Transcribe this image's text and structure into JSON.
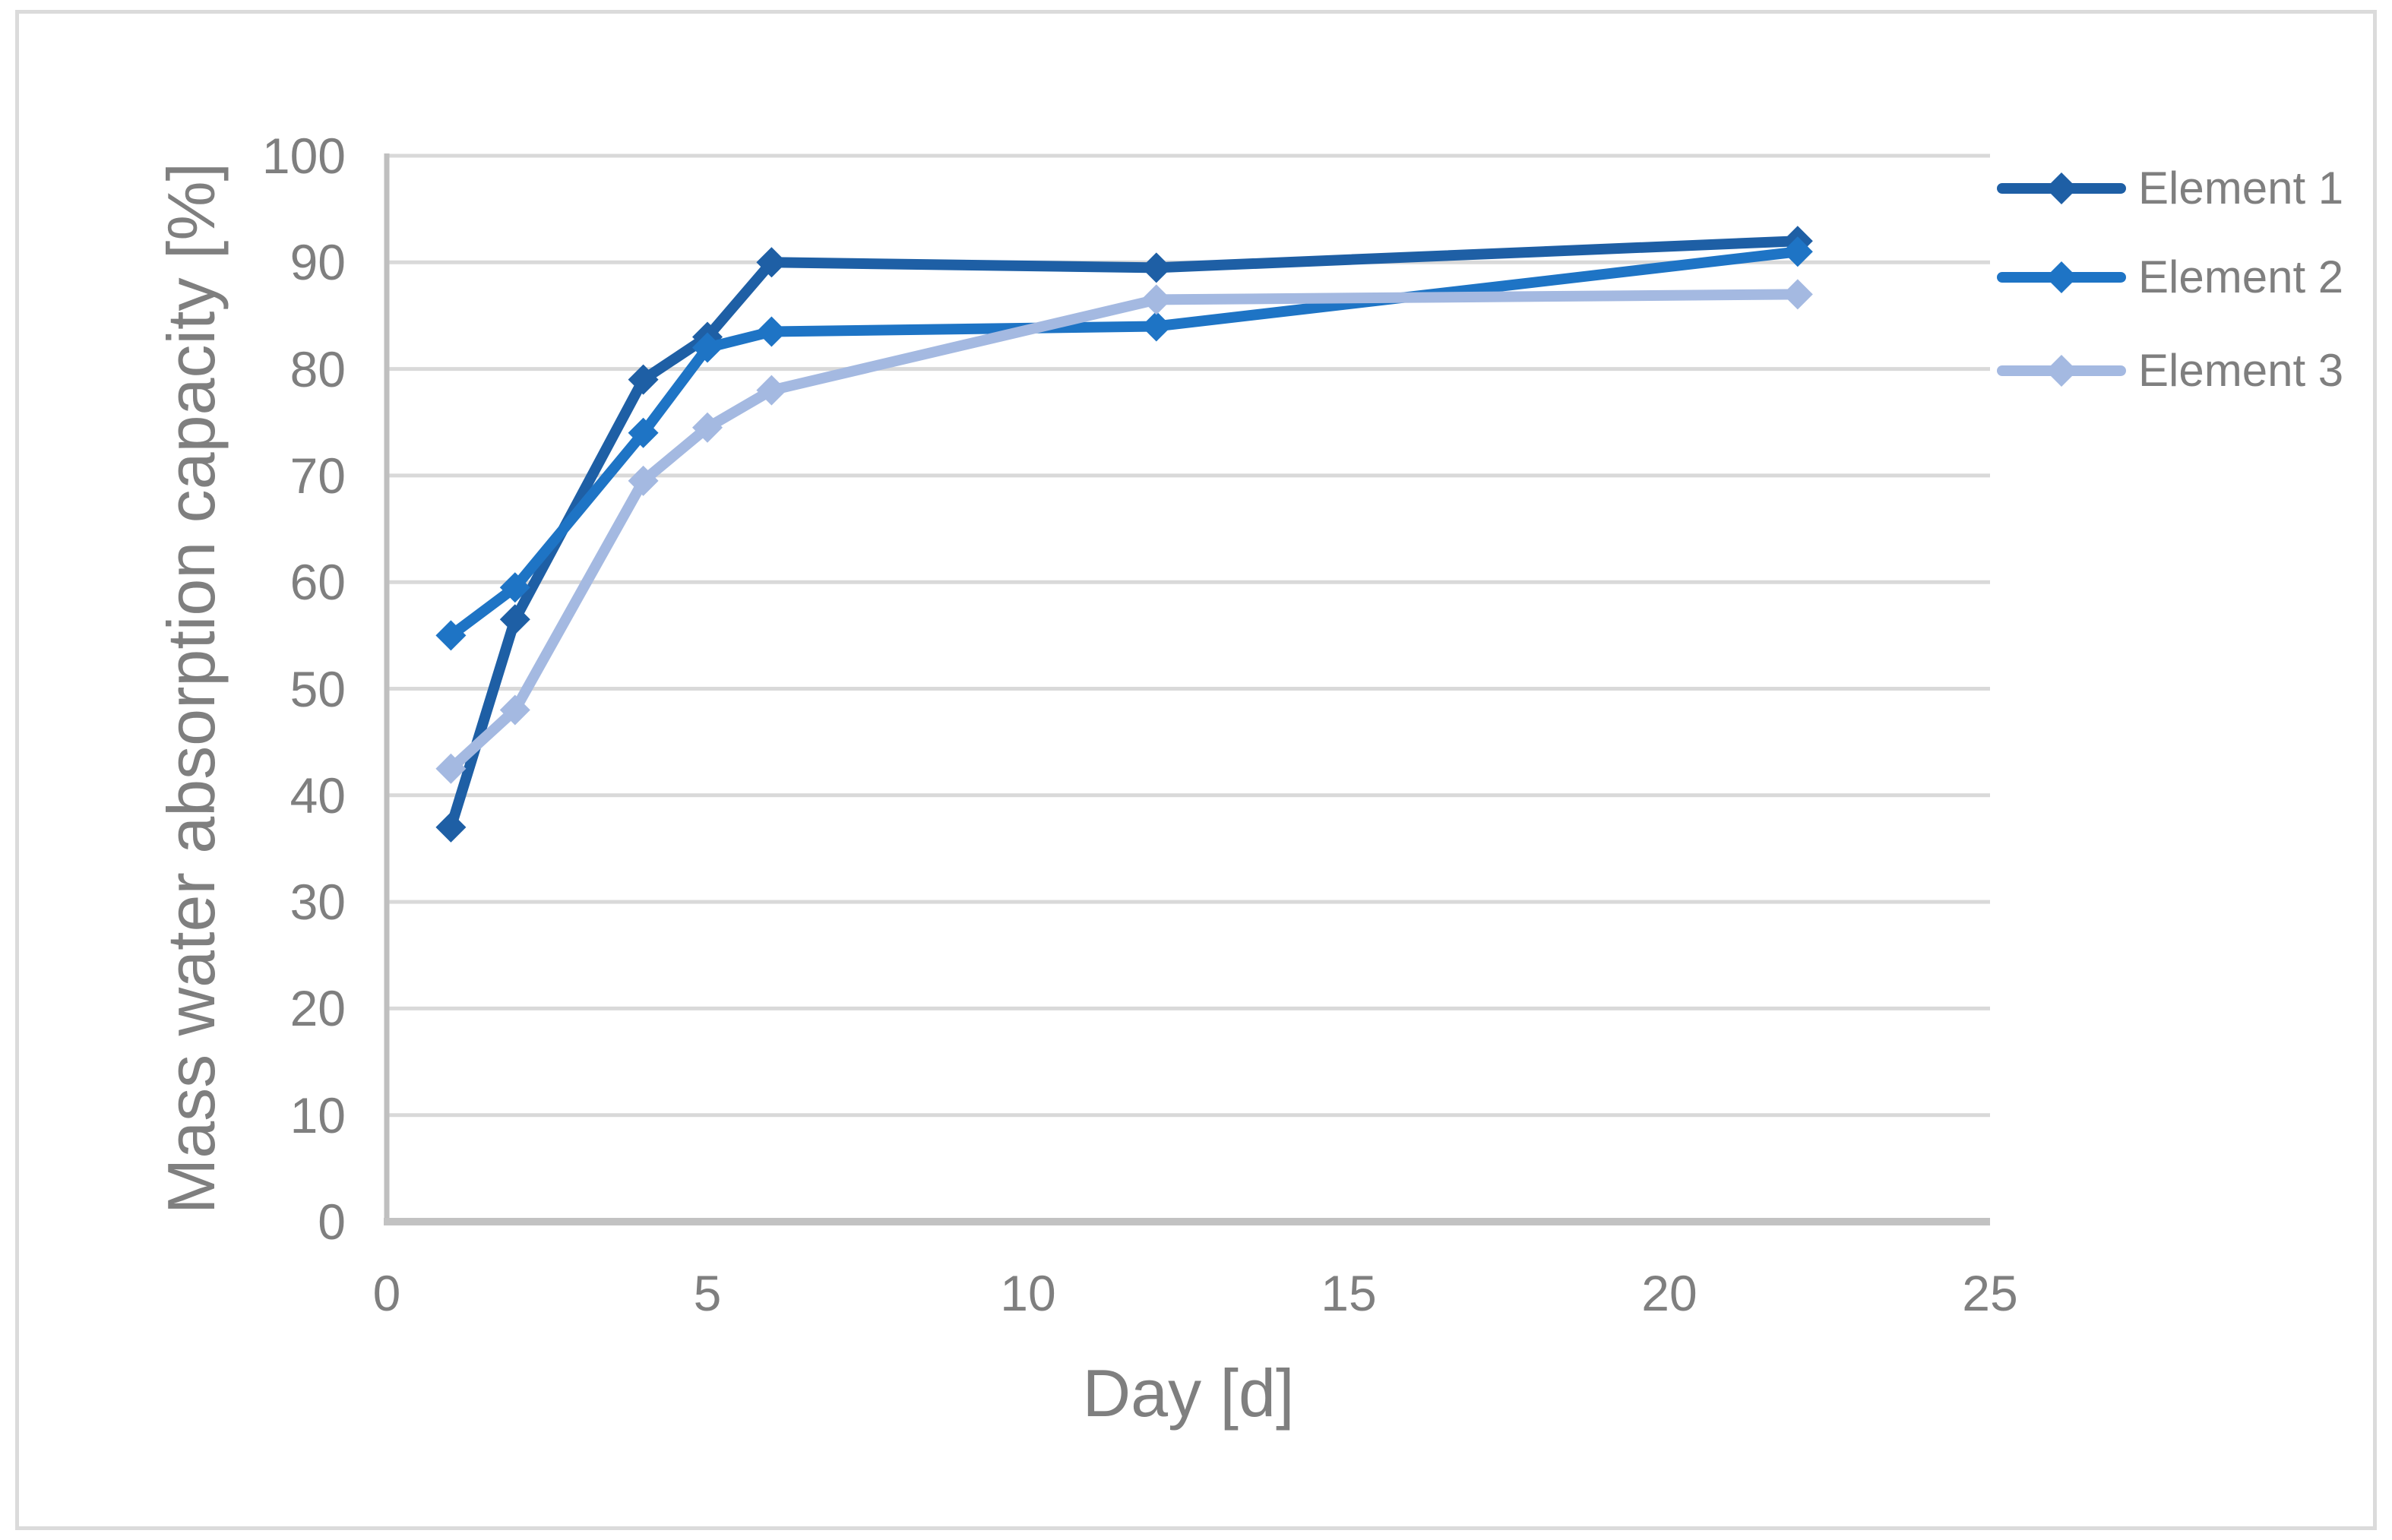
{
  "figure": {
    "background": "#FFFFFF",
    "border_color": "#DBDBDB"
  },
  "axes": {
    "text_color": "#7F7F7F",
    "gridline_color": "#D9D9D9",
    "y_axis_line_color": "#BFBFBF",
    "x_axis_line_color": "#C2C2C2",
    "x_ticks": [
      0,
      5,
      10,
      15,
      20,
      25
    ],
    "y_ticks": [
      0,
      10,
      20,
      30,
      40,
      50,
      60,
      70,
      80,
      90,
      100
    ]
  },
  "chart_data": {
    "type": "line",
    "title": "",
    "xlabel": "Day [d]",
    "ylabel": "Mass water absorption capacity [%]",
    "x": [
      1,
      2,
      4,
      5,
      6,
      12,
      22
    ],
    "xlim": [
      0,
      25
    ],
    "ylim": [
      0,
      100
    ],
    "grid": "horizontal",
    "legend_position": "right",
    "marker": "diamond",
    "series": [
      {
        "name": "Element 1",
        "color": "#1E5FA5",
        "values": [
          37,
          56.5,
          79,
          83,
          90,
          89.5,
          92
        ]
      },
      {
        "name": "Element 2",
        "color": "#1E74C5",
        "values": [
          55,
          59.5,
          74,
          82,
          83.5,
          84,
          91
        ]
      },
      {
        "name": "Element 3",
        "color": "#A4B9E1",
        "values": [
          42.5,
          48,
          69.5,
          74.5,
          78,
          86.5,
          87
        ]
      }
    ]
  }
}
